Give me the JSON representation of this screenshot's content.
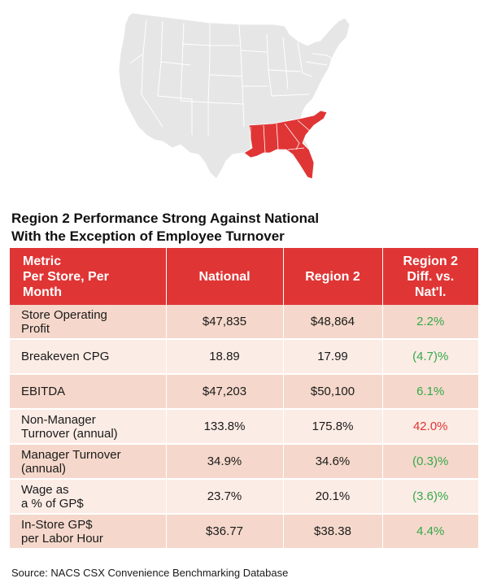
{
  "colors": {
    "highlight_region": "#e03535",
    "map_states": "#e6e6e6",
    "header_bg": "#e03535",
    "row_dark": "#f5d8cb",
    "row_light": "#fbece5",
    "positive": "#35a84a",
    "negative": "#e03535"
  },
  "map": {
    "highlighted_region": "Region 2"
  },
  "title": {
    "line1": "Region 2 Performance Strong Against National",
    "line2": "With the Exception of Employee Turnover"
  },
  "table": {
    "headers": {
      "metric": [
        "Metric",
        "Per Store, Per",
        "Month"
      ],
      "national": "National",
      "region2": "Region 2",
      "diff": [
        "Region 2",
        "Diff. vs.",
        "Nat'l."
      ]
    },
    "rows": [
      {
        "metric": [
          "Store Operating",
          "Profit"
        ],
        "national": "$47,835",
        "region2": "$48,864",
        "diff": "2.2%",
        "diff_tone": "positive"
      },
      {
        "metric": [
          "Breakeven CPG"
        ],
        "national": "18.89",
        "region2": "17.99",
        "diff": "(4.7)%",
        "diff_tone": "positive"
      },
      {
        "metric": [
          "EBITDA"
        ],
        "national": "$47,203",
        "region2": "$50,100",
        "diff": "6.1%",
        "diff_tone": "positive"
      },
      {
        "metric": [
          "Non-Manager",
          "Turnover (annual)"
        ],
        "national": "133.8%",
        "region2": "175.8%",
        "diff": "42.0%",
        "diff_tone": "negative"
      },
      {
        "metric": [
          "Manager Turnover",
          "(annual)"
        ],
        "national": "34.9%",
        "region2": "34.6%",
        "diff": "(0.3)%",
        "diff_tone": "positive"
      },
      {
        "metric": [
          "Wage as",
          "a % of GP$"
        ],
        "national": "23.7%",
        "region2": "20.1%",
        "diff": "(3.6)%",
        "diff_tone": "positive"
      },
      {
        "metric": [
          "In-Store GP$",
          "per Labor Hour"
        ],
        "national": "$36.77",
        "region2": "$38.38",
        "diff": "4.4%",
        "diff_tone": "positive"
      }
    ]
  },
  "source": "Source: NACS CSX Convenience Benchmarking Database"
}
